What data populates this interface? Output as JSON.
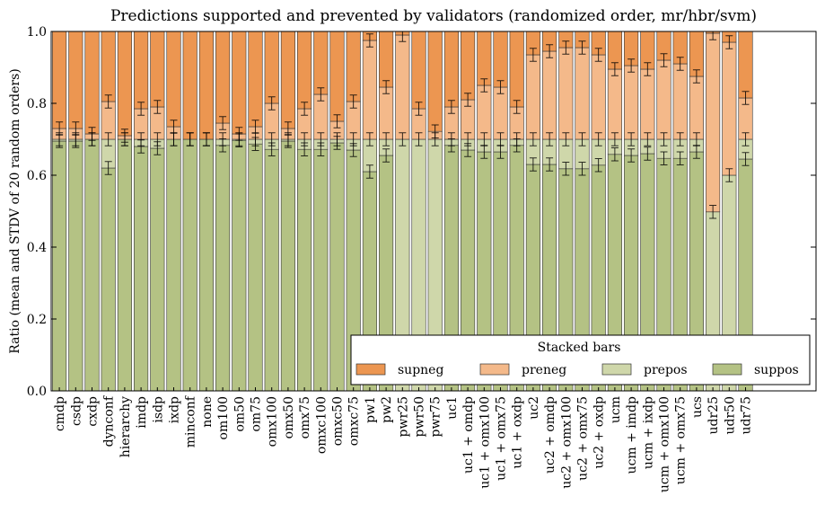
{
  "chart_data": {
    "type": "bar",
    "title": "Predictions supported and prevented by validators (randomized order, mr/hbr/svm)",
    "xlabel": "",
    "ylabel": "Ratio (mean and STDV of 20 random orders)",
    "ylim": [
      0,
      1.0
    ],
    "yticks": [
      "0.0",
      "0.2",
      "0.4",
      "0.6",
      "0.8",
      "1.0"
    ],
    "grid": false,
    "legend": {
      "title": "Stacked bars",
      "placement": "lower-right",
      "entries": [
        "supneg",
        "preneg",
        "prepos",
        "suppos"
      ]
    },
    "colors": {
      "supneg": "#ec9651",
      "preneg": "#f4b98a",
      "prepos": "#cfd7aa",
      "suppos": "#b4c284"
    },
    "categories": [
      "cmdp",
      "csdp",
      "cxdp",
      "dynconf",
      "hierarchy",
      "imdp",
      "isdp",
      "ixdp",
      "minconf",
      "none",
      "om100",
      "om50",
      "om75",
      "omx100",
      "omx50",
      "omx75",
      "omxc100",
      "omxc50",
      "omxc75",
      "pw1",
      "pw2",
      "pwr25",
      "pwr50",
      "pwr75",
      "uc1",
      "uc1 + omdp",
      "uc1 + omx100",
      "uc1 + omx75",
      "uc1 + oxdp",
      "uc2",
      "uc2 + omdp",
      "uc2 + omx100",
      "uc2 + omx75",
      "uc2 + oxdp",
      "ucm",
      "ucm + imdp",
      "ucm + ixdp",
      "ucm + omx100",
      "ucm + omx75",
      "ucs",
      "udr25",
      "udr50",
      "udr75"
    ],
    "series": [
      {
        "name": "suppos",
        "values": [
          0.695,
          0.695,
          0.7,
          0.62,
          0.7,
          0.68,
          0.675,
          0.7,
          0.7,
          0.7,
          0.683,
          0.697,
          0.687,
          0.672,
          0.695,
          0.672,
          0.672,
          0.69,
          0.67,
          0.61,
          0.655,
          0.0,
          0.0,
          0.0,
          0.683,
          0.67,
          0.665,
          0.665,
          0.683,
          0.63,
          0.63,
          0.618,
          0.618,
          0.628,
          0.658,
          0.655,
          0.66,
          0.647,
          0.647,
          0.665,
          0.0,
          0.0,
          0.645
        ]
      },
      {
        "name": "prepos",
        "values": [
          0.005,
          0.005,
          0.0,
          0.08,
          0.0,
          0.02,
          0.025,
          0.0,
          0.0,
          0.0,
          0.017,
          0.003,
          0.013,
          0.028,
          0.005,
          0.028,
          0.028,
          0.01,
          0.03,
          0.09,
          0.045,
          0.7,
          0.7,
          0.7,
          0.017,
          0.03,
          0.035,
          0.035,
          0.017,
          0.07,
          0.07,
          0.082,
          0.082,
          0.072,
          0.042,
          0.045,
          0.04,
          0.053,
          0.053,
          0.035,
          0.498,
          0.6,
          0.055
        ]
      },
      {
        "name": "preneg",
        "values": [
          0.03,
          0.03,
          0.015,
          0.105,
          0.01,
          0.085,
          0.09,
          0.035,
          0.0,
          0.0,
          0.045,
          0.015,
          0.035,
          0.1,
          0.03,
          0.085,
          0.125,
          0.05,
          0.105,
          0.275,
          0.145,
          0.29,
          0.085,
          0.022,
          0.09,
          0.11,
          0.15,
          0.145,
          0.09,
          0.235,
          0.245,
          0.255,
          0.255,
          0.235,
          0.195,
          0.205,
          0.195,
          0.22,
          0.21,
          0.175,
          0.497,
          0.37,
          0.115
        ]
      },
      {
        "name": "supneg",
        "values": [
          0.27,
          0.27,
          0.285,
          0.195,
          0.29,
          0.215,
          0.21,
          0.265,
          0.3,
          0.3,
          0.255,
          0.285,
          0.265,
          0.2,
          0.27,
          0.215,
          0.175,
          0.25,
          0.195,
          0.025,
          0.155,
          0.01,
          0.215,
          0.278,
          0.21,
          0.19,
          0.15,
          0.155,
          0.21,
          0.065,
          0.055,
          0.045,
          0.045,
          0.065,
          0.105,
          0.095,
          0.105,
          0.08,
          0.09,
          0.125,
          0.005,
          0.03,
          0.185
        ]
      }
    ]
  }
}
